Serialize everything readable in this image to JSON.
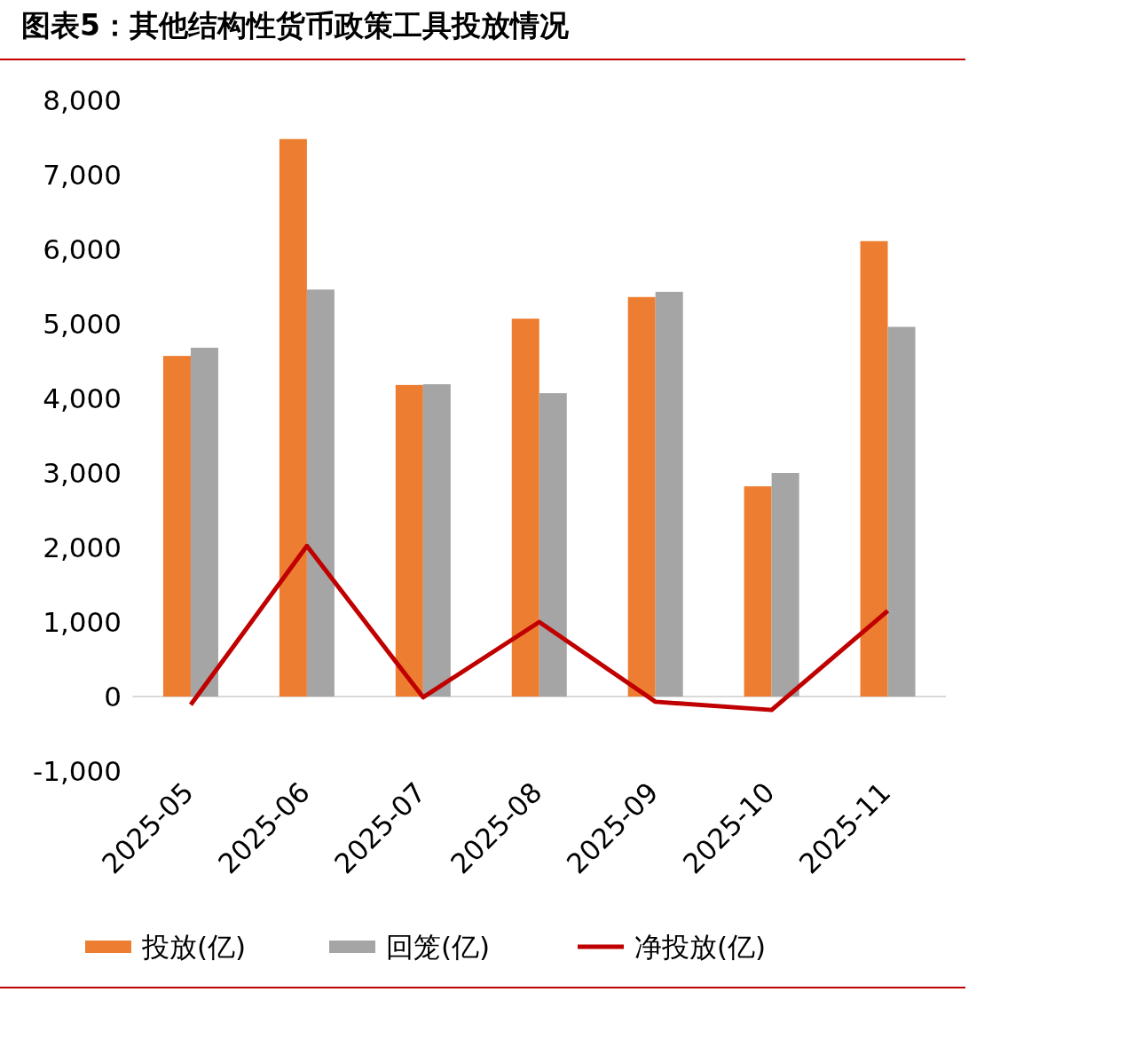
{
  "chart_data": {
    "type": "bar",
    "title": "图表5：其他结构性货币政策工具投放情况",
    "categories": [
      "2025-05",
      "2025-06",
      "2025-07",
      "2025-08",
      "2025-09",
      "2025-10",
      "2025-11"
    ],
    "series": [
      {
        "name": "投放(亿)",
        "color": "#ed7d31",
        "values": [
          4570,
          7480,
          4180,
          5070,
          5360,
          2820,
          6110
        ]
      },
      {
        "name": "回笼(亿)",
        "color": "#a5a5a5",
        "values": [
          4680,
          5460,
          4190,
          4070,
          5430,
          3000,
          4960
        ]
      },
      {
        "name": "净投放(亿)",
        "type": "line",
        "color": "#c00000",
        "values": [
          -110,
          2020,
          -10,
          1000,
          -70,
          -180,
          1150
        ]
      }
    ],
    "ylim": [
      -1000,
      8000
    ],
    "yticks": [
      {
        "value": -1000,
        "label": "-1,000"
      },
      0,
      {
        "value": 1000,
        "label": "1,000"
      },
      {
        "value": 2000,
        "label": "2,000"
      },
      {
        "value": 3000,
        "label": "3,000"
      },
      {
        "value": 4000,
        "label": "4,000"
      },
      {
        "value": 5000,
        "label": "5,000"
      },
      {
        "value": 6000,
        "label": "6,000"
      },
      {
        "value": 7000,
        "label": "7,000"
      },
      {
        "value": 8000,
        "label": "8,000"
      }
    ],
    "legend": "bottom"
  }
}
